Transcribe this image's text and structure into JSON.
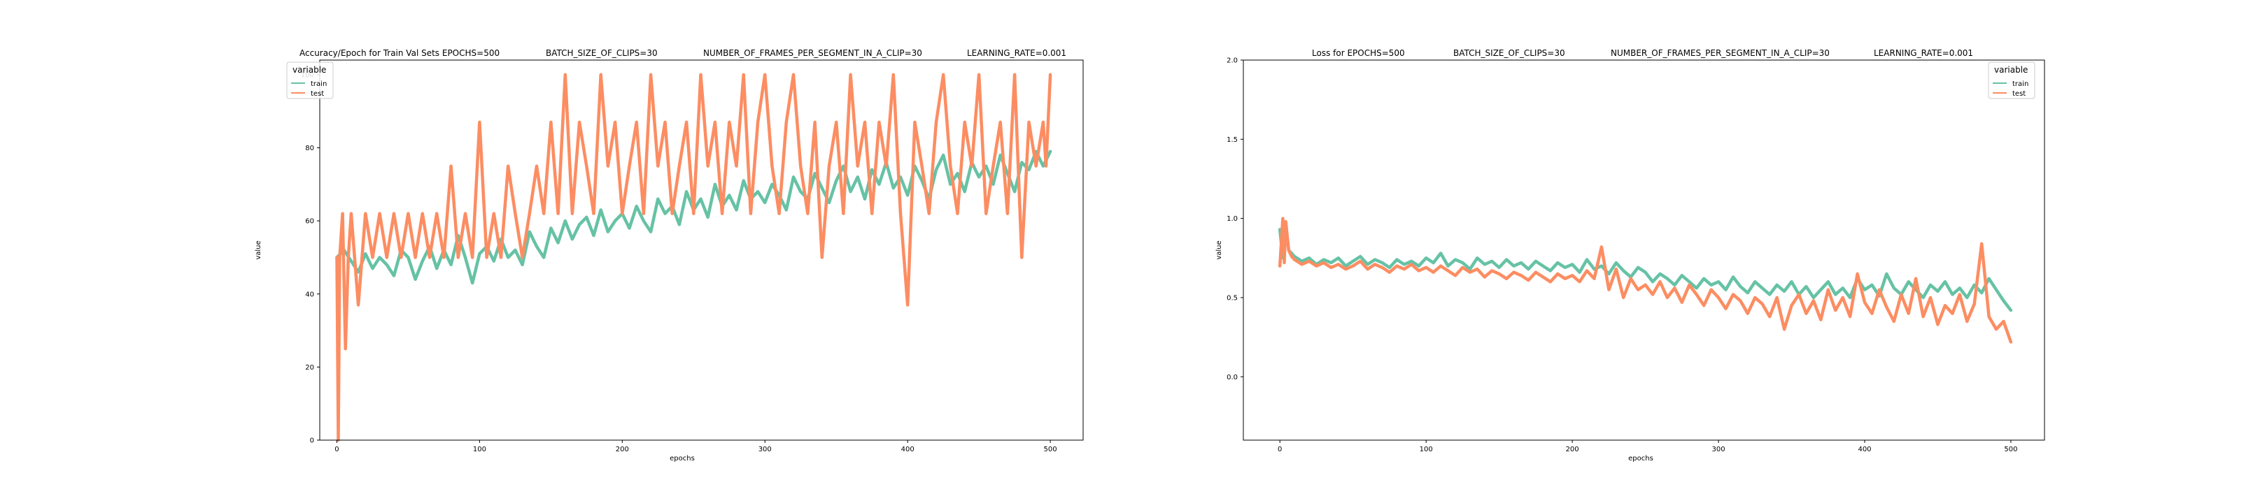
{
  "chart_data": [
    {
      "type": "line",
      "title_parts": [
        "Accuracy/Epoch for Train Val Sets EPOCHS=500",
        "BATCH_SIZE_OF_CLIPS=30",
        "NUMBER_OF_FRAMES_PER_SEGMENT_IN_A_CLIP=30",
        "LEARNING_RATE=0.001"
      ],
      "xlabel": "epochs",
      "ylabel": "value",
      "xlim": [
        -12,
        523
      ],
      "ylim": [
        0,
        104
      ],
      "xticks": [
        0,
        100,
        200,
        300,
        400,
        500
      ],
      "yticks": [
        0,
        20,
        40,
        60,
        80,
        100
      ],
      "legend": {
        "title": "variable",
        "placement": "top-left",
        "entries": [
          "train",
          "test"
        ]
      },
      "series": [
        {
          "name": "train",
          "color": "#66c2a5",
          "x": [
            0,
            5,
            10,
            15,
            20,
            25,
            30,
            35,
            40,
            45,
            50,
            55,
            60,
            65,
            70,
            75,
            80,
            85,
            90,
            95,
            100,
            105,
            110,
            115,
            120,
            125,
            130,
            135,
            140,
            145,
            150,
            155,
            160,
            165,
            170,
            175,
            180,
            185,
            190,
            195,
            200,
            205,
            210,
            215,
            220,
            225,
            230,
            235,
            240,
            245,
            250,
            255,
            260,
            265,
            270,
            275,
            280,
            285,
            290,
            295,
            300,
            305,
            310,
            315,
            320,
            325,
            330,
            335,
            340,
            345,
            350,
            355,
            360,
            365,
            370,
            375,
            380,
            385,
            390,
            395,
            400,
            405,
            410,
            415,
            420,
            425,
            430,
            435,
            440,
            445,
            450,
            455,
            460,
            465,
            470,
            475,
            480,
            485,
            490,
            495,
            500
          ],
          "y": [
            50,
            52,
            49,
            46,
            51,
            47,
            50,
            48,
            45,
            52,
            50,
            44,
            49,
            53,
            47,
            52,
            48,
            56,
            50,
            43,
            51,
            53,
            49,
            55,
            50,
            52,
            48,
            57,
            53,
            50,
            58,
            54,
            60,
            55,
            59,
            61,
            56,
            63,
            57,
            60,
            62,
            58,
            64,
            60,
            57,
            66,
            62,
            64,
            59,
            68,
            63,
            66,
            61,
            70,
            64,
            67,
            63,
            71,
            66,
            68,
            65,
            70,
            67,
            63,
            72,
            68,
            66,
            73,
            69,
            65,
            71,
            75,
            68,
            72,
            66,
            74,
            70,
            76,
            69,
            72,
            67,
            75,
            71,
            66,
            74,
            78,
            70,
            73,
            68,
            76,
            72,
            75,
            70,
            78,
            73,
            68,
            76,
            74,
            79,
            75,
            79
          ]
        },
        {
          "name": "test",
          "color": "#fc8d62",
          "x": [
            0,
            1,
            2,
            4,
            6,
            8,
            10,
            15,
            20,
            25,
            30,
            35,
            40,
            45,
            50,
            55,
            60,
            65,
            70,
            75,
            80,
            85,
            90,
            95,
            100,
            105,
            110,
            115,
            120,
            125,
            130,
            135,
            140,
            145,
            150,
            155,
            160,
            165,
            170,
            175,
            180,
            185,
            190,
            195,
            200,
            205,
            210,
            215,
            220,
            225,
            230,
            235,
            240,
            245,
            250,
            255,
            260,
            265,
            270,
            275,
            280,
            285,
            290,
            295,
            300,
            305,
            310,
            315,
            320,
            325,
            330,
            335,
            340,
            345,
            350,
            355,
            360,
            365,
            370,
            375,
            380,
            385,
            390,
            395,
            400,
            405,
            410,
            415,
            420,
            425,
            430,
            435,
            440,
            445,
            450,
            455,
            460,
            465,
            470,
            475,
            480,
            485,
            490,
            495,
            497,
            500
          ],
          "y": [
            50,
            0,
            50,
            62,
            25,
            50,
            62,
            37,
            62,
            50,
            62,
            50,
            62,
            50,
            62,
            50,
            62,
            50,
            62,
            50,
            75,
            50,
            62,
            50,
            87,
            50,
            62,
            50,
            75,
            62,
            50,
            62,
            75,
            62,
            87,
            62,
            100,
            62,
            87,
            75,
            62,
            100,
            75,
            87,
            62,
            75,
            87,
            62,
            100,
            75,
            87,
            62,
            75,
            87,
            62,
            100,
            75,
            87,
            62,
            87,
            75,
            100,
            62,
            87,
            100,
            75,
            62,
            87,
            100,
            75,
            62,
            87,
            50,
            75,
            87,
            62,
            100,
            75,
            87,
            62,
            87,
            75,
            100,
            62,
            37,
            87,
            75,
            62,
            87,
            100,
            75,
            62,
            87,
            75,
            100,
            62,
            75,
            87,
            62,
            100,
            50,
            87,
            75,
            87,
            75,
            100
          ]
        }
      ]
    },
    {
      "type": "line",
      "title_parts": [
        "Loss for  EPOCHS=500",
        "BATCH_SIZE_OF_CLIPS=30",
        "NUMBER_OF_FRAMES_PER_SEGMENT_IN_A_CLIP=30",
        "LEARNING_RATE=0.001"
      ],
      "xlabel": "epochs",
      "ylabel": "value",
      "xlim": [
        -25,
        523
      ],
      "ylim": [
        -0.4,
        2.0
      ],
      "xticks": [
        0,
        100,
        200,
        300,
        400,
        500
      ],
      "yticks": [
        0.0,
        0.5,
        1.0,
        1.5,
        2.0
      ],
      "ytick_labels": [
        "0.0",
        "0.5",
        "1.0",
        "1.5",
        "2.0"
      ],
      "legend": {
        "title": "variable",
        "placement": "top-right",
        "entries": [
          "train",
          "test"
        ]
      },
      "series": [
        {
          "name": "train",
          "color": "#66c2a5",
          "x": [
            0,
            2,
            4,
            6,
            10,
            15,
            20,
            25,
            30,
            35,
            40,
            45,
            50,
            55,
            60,
            65,
            70,
            75,
            80,
            85,
            90,
            95,
            100,
            105,
            110,
            115,
            120,
            125,
            130,
            135,
            140,
            145,
            150,
            155,
            160,
            165,
            170,
            175,
            180,
            185,
            190,
            195,
            200,
            205,
            210,
            215,
            220,
            225,
            230,
            235,
            240,
            245,
            250,
            255,
            260,
            265,
            270,
            275,
            280,
            285,
            290,
            295,
            300,
            305,
            310,
            315,
            320,
            325,
            330,
            335,
            340,
            345,
            350,
            355,
            360,
            365,
            370,
            375,
            380,
            385,
            390,
            395,
            400,
            405,
            410,
            415,
            420,
            425,
            430,
            435,
            440,
            445,
            450,
            455,
            460,
            465,
            470,
            475,
            480,
            485,
            490,
            495,
            500
          ],
          "y": [
            0.93,
            0.75,
            0.95,
            0.8,
            0.76,
            0.73,
            0.75,
            0.71,
            0.74,
            0.72,
            0.75,
            0.7,
            0.73,
            0.76,
            0.71,
            0.74,
            0.72,
            0.69,
            0.74,
            0.71,
            0.73,
            0.7,
            0.75,
            0.72,
            0.78,
            0.7,
            0.74,
            0.72,
            0.68,
            0.75,
            0.71,
            0.73,
            0.69,
            0.74,
            0.7,
            0.72,
            0.68,
            0.73,
            0.7,
            0.67,
            0.72,
            0.69,
            0.71,
            0.66,
            0.74,
            0.68,
            0.7,
            0.65,
            0.72,
            0.67,
            0.63,
            0.69,
            0.66,
            0.6,
            0.65,
            0.62,
            0.58,
            0.64,
            0.6,
            0.56,
            0.62,
            0.58,
            0.6,
            0.55,
            0.63,
            0.57,
            0.53,
            0.6,
            0.56,
            0.52,
            0.58,
            0.54,
            0.6,
            0.52,
            0.57,
            0.5,
            0.55,
            0.6,
            0.52,
            0.56,
            0.5,
            0.62,
            0.55,
            0.58,
            0.51,
            0.65,
            0.56,
            0.52,
            0.6,
            0.55,
            0.5,
            0.58,
            0.54,
            0.6,
            0.52,
            0.56,
            0.5,
            0.58,
            0.53,
            0.62,
            0.55,
            0.48,
            0.42
          ]
        },
        {
          "name": "test",
          "color": "#fc8d62",
          "x": [
            0,
            1,
            2,
            3,
            4,
            6,
            8,
            10,
            15,
            20,
            25,
            30,
            35,
            40,
            45,
            50,
            55,
            60,
            65,
            70,
            75,
            80,
            85,
            90,
            95,
            100,
            105,
            110,
            115,
            120,
            125,
            130,
            135,
            140,
            145,
            150,
            155,
            160,
            165,
            170,
            175,
            180,
            185,
            190,
            195,
            200,
            205,
            210,
            215,
            220,
            225,
            230,
            235,
            240,
            245,
            250,
            255,
            260,
            265,
            270,
            275,
            280,
            285,
            290,
            295,
            300,
            305,
            310,
            315,
            320,
            325,
            330,
            335,
            340,
            345,
            350,
            355,
            360,
            365,
            370,
            375,
            380,
            385,
            390,
            395,
            400,
            405,
            410,
            415,
            420,
            425,
            430,
            435,
            440,
            445,
            450,
            455,
            460,
            465,
            470,
            475,
            480,
            485,
            490,
            495,
            500
          ],
          "y": [
            0.7,
            0.85,
            1.0,
            0.72,
            0.98,
            0.8,
            0.76,
            0.74,
            0.71,
            0.73,
            0.7,
            0.72,
            0.69,
            0.71,
            0.68,
            0.7,
            0.73,
            0.68,
            0.71,
            0.69,
            0.66,
            0.7,
            0.68,
            0.71,
            0.67,
            0.69,
            0.66,
            0.7,
            0.67,
            0.64,
            0.69,
            0.66,
            0.68,
            0.63,
            0.67,
            0.65,
            0.62,
            0.66,
            0.64,
            0.61,
            0.66,
            0.63,
            0.6,
            0.65,
            0.62,
            0.64,
            0.6,
            0.67,
            0.62,
            0.82,
            0.55,
            0.68,
            0.5,
            0.62,
            0.55,
            0.58,
            0.52,
            0.6,
            0.5,
            0.56,
            0.47,
            0.58,
            0.52,
            0.45,
            0.55,
            0.5,
            0.43,
            0.52,
            0.48,
            0.4,
            0.5,
            0.46,
            0.38,
            0.5,
            0.3,
            0.45,
            0.52,
            0.4,
            0.48,
            0.36,
            0.55,
            0.42,
            0.5,
            0.38,
            0.65,
            0.47,
            0.4,
            0.55,
            0.44,
            0.35,
            0.52,
            0.4,
            0.62,
            0.38,
            0.5,
            0.33,
            0.45,
            0.4,
            0.52,
            0.35,
            0.46,
            0.84,
            0.38,
            0.3,
            0.35,
            0.22
          ]
        }
      ]
    }
  ]
}
